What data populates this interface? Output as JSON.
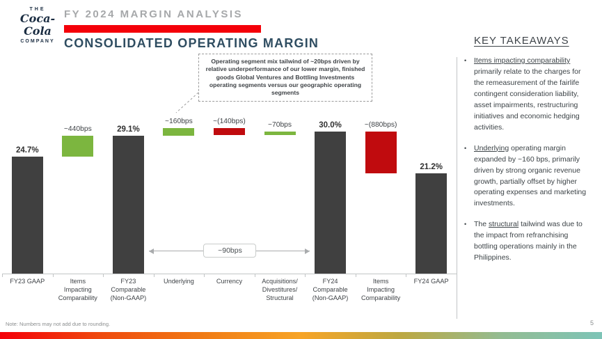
{
  "header": {
    "logo_the": "THE",
    "logo_script": "Coca-Cola",
    "logo_company": "COMPANY",
    "eyebrow": "FY 2024 MARGIN ANALYSIS",
    "title": "CONSOLIDATED OPERATING MARGIN"
  },
  "callout": {
    "text": "Operating segment mix tailwind of ~20bps driven by relative underperformance of our lower margin, finished goods Global Ventures and Bottling Investments operating segments versus our geographic operating segments"
  },
  "chart_data": {
    "type": "bar",
    "subtype": "waterfall",
    "title": "CONSOLIDATED OPERATING MARGIN",
    "unit": "operating margin, %",
    "categories": [
      "FY23 GAAP",
      "Items\nImpacting\nComparability",
      "FY23\nComparable\n(Non-GAAP)",
      "Underlying",
      "Currency",
      "Acquisitions/\nDivestitures/\nStructural",
      "FY24\nComparable\n(Non-GAAP)",
      "Items\nImpacting\nComparability",
      "FY24 GAAP"
    ],
    "values": [
      24.7,
      4.4,
      29.1,
      1.6,
      -1.4,
      0.7,
      30.0,
      -8.8,
      21.2
    ],
    "bar_labels": [
      "24.7%",
      "~440bps",
      "29.1%",
      "~160bps",
      "~(140bps)",
      "~70bps",
      "30.0%",
      "~(880bps)",
      "21.2%"
    ],
    "roles": [
      "total",
      "increase",
      "total",
      "increase",
      "decrease",
      "increase",
      "total",
      "decrease",
      "total"
    ],
    "colors": {
      "total": "#404040",
      "increase": "#7cb63f",
      "decrease": "#c00b0e"
    },
    "span_annotation": {
      "label": "~90bps",
      "from_index": 2,
      "to_index": 6
    },
    "ylim": [
      0,
      33
    ],
    "grid": false,
    "legend": false
  },
  "takeaways": {
    "title": "KEY TAKEAWAYS",
    "bullets": [
      {
        "pre": "",
        "underlined": "Items impacting comparability",
        "rest": " primarily relate to the charges for the remeasurement of the fairlife contingent consideration liability, asset impairments, restructuring initiatives and economic hedging activities."
      },
      {
        "pre": "",
        "underlined": "Underlying",
        "rest": " operating margin expanded by ~160 bps, primarily driven by strong organic revenue growth, partially offset by higher operating expenses and marketing investments."
      },
      {
        "pre": "The ",
        "underlined": "structural",
        "rest": " tailwind was due to the impact from refranchising bottling operations mainly in the Philippines."
      }
    ]
  },
  "footer": {
    "note": "Note: Numbers may not add due to rounding.",
    "page": "5"
  },
  "theme": {
    "brand_red": "#f40009",
    "title_navy": "#2f4d61",
    "gradient": [
      "#f40009",
      "#ef4a0e",
      "#f07a14",
      "#f7a426",
      "#bca842",
      "#93bc92",
      "#7dc4b7"
    ]
  }
}
